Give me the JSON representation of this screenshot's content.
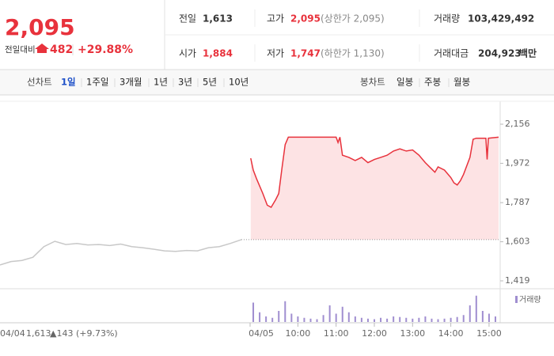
{
  "quote": {
    "price": "2,095",
    "change_label": "전일대비",
    "change": "482",
    "change_pct": "+29.88%"
  },
  "stats": [
    {
      "label": "전일",
      "value": "1,613"
    },
    {
      "label": "고가",
      "value": "2,095",
      "note": "(상한가 2,095)"
    },
    {
      "label": "거래량",
      "value": "103,429,492"
    },
    {
      "label": "시가",
      "value": "1,884"
    },
    {
      "label": "저가",
      "value": "1,747",
      "note": "(하한가 1,130)"
    },
    {
      "label": "거래대금",
      "value": "204,923",
      "unit": "백만"
    }
  ],
  "tabs": {
    "line_label": "선차트",
    "line": [
      "1일",
      "1주일",
      "3개월",
      "1년",
      "3년",
      "5년",
      "10년"
    ],
    "selected": 0,
    "candle_label": "봉차트",
    "candle": [
      "일봉",
      "주봉",
      "월봉"
    ]
  },
  "chart_data": {
    "type": "line",
    "ylim": [
      1419,
      2156
    ],
    "yticks": [
      {
        "value": 2156,
        "label": "2,156"
      },
      {
        "value": 1972,
        "label": "1,972"
      },
      {
        "value": 1787,
        "label": "1,787"
      },
      {
        "value": 1603,
        "label": "1,603"
      },
      {
        "value": 1419,
        "label": "1,419"
      }
    ],
    "prev_close": {
      "value": 1613,
      "label": "1,613"
    },
    "prev_day": {
      "date": "04/04",
      "change": "▲143 (+9.73%)",
      "color": "#c8c8c8",
      "values": [
        1494,
        1510,
        1515,
        1530,
        1580,
        1605,
        1590,
        1595,
        1588,
        1590,
        1585,
        1592,
        1580,
        1575,
        1568,
        1560,
        1558,
        1562,
        1560,
        1575,
        1580,
        1595,
        1613
      ]
    },
    "today": {
      "date": "04/05",
      "color": "#e8323c",
      "fill": "#fde3e4",
      "x": [
        526,
        530,
        535,
        545,
        552,
        558,
        565,
        570,
        575,
        580,
        585,
        660,
        663,
        666,
        670,
        680,
        690,
        700,
        710,
        720,
        730,
        740,
        750,
        760,
        770,
        780,
        790,
        800,
        810,
        815,
        820,
        830,
        840,
        845,
        850,
        855,
        860,
        870,
        875,
        880,
        895,
        897,
        899,
        915
      ],
      "values": [
        1996,
        1940,
        1900,
        1830,
        1775,
        1765,
        1800,
        1830,
        1950,
        2060,
        2095,
        2095,
        2070,
        2095,
        2010,
        2000,
        1985,
        2000,
        1975,
        1990,
        2000,
        2010,
        2030,
        2040,
        2030,
        2035,
        2010,
        1975,
        1945,
        1930,
        1955,
        1940,
        1905,
        1880,
        1870,
        1890,
        1920,
        2000,
        2085,
        2090,
        2090,
        1990,
        2090,
        2095
      ]
    },
    "xlim": [
      525,
      915
    ],
    "xticks": [
      {
        "value": 600,
        "label": "10:00"
      },
      {
        "value": 660,
        "label": "11:00"
      },
      {
        "value": 720,
        "label": "12:00"
      },
      {
        "value": 780,
        "label": "13:00"
      },
      {
        "value": 840,
        "label": "14:00"
      },
      {
        "value": 900,
        "label": "15:00"
      }
    ],
    "volume": {
      "name": "거래량",
      "color": "#a08ed0",
      "ylim": [
        0,
        100
      ],
      "x": [
        530,
        540,
        550,
        560,
        570,
        580,
        590,
        600,
        610,
        620,
        630,
        640,
        650,
        660,
        670,
        680,
        690,
        700,
        710,
        720,
        730,
        740,
        750,
        760,
        770,
        780,
        790,
        800,
        810,
        820,
        830,
        840,
        850,
        860,
        870,
        880,
        890,
        900,
        910
      ],
      "values": [
        70,
        35,
        20,
        15,
        40,
        75,
        30,
        20,
        15,
        12,
        10,
        25,
        60,
        30,
        55,
        35,
        20,
        15,
        12,
        10,
        15,
        12,
        20,
        18,
        15,
        12,
        15,
        20,
        12,
        10,
        12,
        15,
        18,
        25,
        60,
        95,
        40,
        30,
        20
      ]
    }
  }
}
